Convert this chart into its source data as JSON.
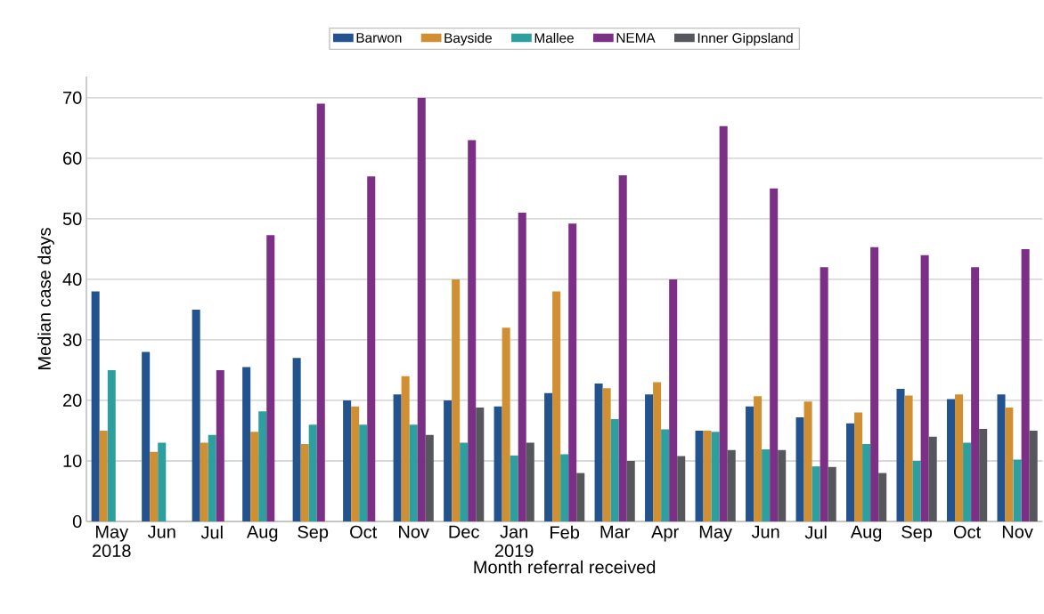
{
  "chart_data": {
    "type": "bar",
    "xlabel": "Month referral received",
    "ylabel": "Median case days",
    "categories": [
      "May 2018",
      "Jun",
      "Jul",
      "Aug",
      "Sep",
      "Oct",
      "Nov",
      "Dec",
      "Jan 2019",
      "Feb",
      "Mar",
      "Apr",
      "May",
      "Jun",
      "Jul",
      "Aug",
      "Sep",
      "Oct",
      "Nov"
    ],
    "series": [
      {
        "name": "Barwon",
        "color": "#23538f",
        "values": [
          38,
          28,
          35,
          25.5,
          27,
          20,
          21,
          20,
          19,
          21.2,
          22.8,
          21,
          15,
          19,
          17.2,
          16.2,
          21.9,
          20.2,
          21
        ]
      },
      {
        "name": "Bayside",
        "color": "#d08f32",
        "values": [
          15,
          11.5,
          13,
          14.8,
          12.8,
          19,
          24,
          40,
          32,
          38,
          22,
          23,
          15,
          20.7,
          19.8,
          18,
          20.8,
          21,
          18.8
        ]
      },
      {
        "name": "Mallee",
        "color": "#2e9f9f",
        "values": [
          25,
          13,
          14.3,
          18.2,
          16,
          16,
          16,
          13,
          10.9,
          11.1,
          16.9,
          15.2,
          14.8,
          11.9,
          9.1,
          12.8,
          10,
          13,
          10.2
        ]
      },
      {
        "name": "NEMA",
        "color": "#7b2f85",
        "values": [
          null,
          null,
          25,
          47.3,
          69,
          57,
          70,
          63,
          51,
          49.2,
          57.2,
          40,
          65.3,
          55,
          42,
          45.3,
          44,
          42,
          45
        ]
      },
      {
        "name": "Inner Gippsland",
        "color": "#56575c",
        "values": [
          null,
          null,
          null,
          null,
          null,
          null,
          14.3,
          18.8,
          13,
          8,
          10,
          10.8,
          11.8,
          11.8,
          9,
          8,
          14,
          15.3,
          15
        ]
      }
    ],
    "ylim": [
      0,
      73.5
    ],
    "yticks": [
      0,
      10,
      20,
      30,
      40,
      50,
      60,
      70
    ],
    "grid": "y",
    "legend": "top"
  }
}
